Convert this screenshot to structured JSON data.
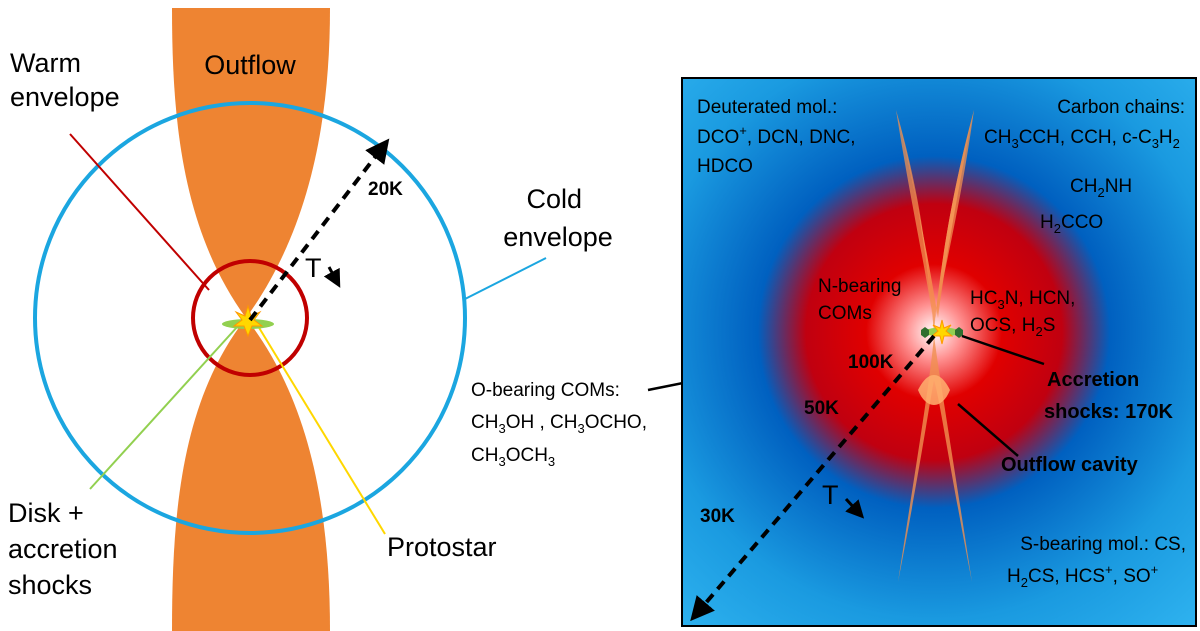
{
  "left_panel": {
    "outflow": "Outflow",
    "warm_envelope": [
      "Warm",
      "envelope"
    ],
    "cold_envelope": [
      "Cold",
      "envelope"
    ],
    "disk_accretion": [
      "Disk +",
      "accretion",
      "shocks"
    ],
    "protostar": "Protostar",
    "temp_20k": "20K",
    "temp_symbol": "T"
  },
  "middle": {
    "o_bearing_title": "O-bearing COMs:",
    "o_bearing_line1_parts": [
      "CH",
      "3",
      "OH , CH",
      "3",
      "OCHO,"
    ],
    "o_bearing_line2_parts": [
      "CH",
      "3",
      "OCH",
      "3"
    ]
  },
  "right_panel": {
    "deuterated_title": "Deuterated mol.:",
    "deuterated_line1_parts": [
      "DCO",
      "+",
      ", DCN, DNC,"
    ],
    "deuterated_line2": "HDCO",
    "carbon_title": "Carbon chains:",
    "carbon_line1_parts": [
      "CH",
      "3",
      "CCH, CCH, c-C",
      "3",
      "H",
      "2"
    ],
    "ch2nh_parts": [
      "CH",
      "2",
      "NH"
    ],
    "h2cco_parts": [
      "H",
      "2",
      "CCO"
    ],
    "n_bearing": [
      "N-bearing",
      "COMs"
    ],
    "hc3n_line1_parts": [
      "HC",
      "3",
      "N, HCN,"
    ],
    "hc3n_line2_parts": [
      "OCS, H",
      "2",
      "S"
    ],
    "temp_100k": "100K",
    "temp_50k": "50K",
    "temp_30k": "30K",
    "accretion_shocks": [
      "Accretion",
      "shocks: 170K"
    ],
    "outflow_cavity": "Outflow cavity",
    "temp_symbol": "T",
    "s_bearing_line1": "S-bearing mol.: CS,",
    "s_bearing_line2_parts": [
      "H",
      "2",
      "CS, HCS",
      "+",
      ",  SO",
      "+"
    ]
  },
  "colors": {
    "outflow_orange": "#ee8432",
    "cold_envelope_blue": "#1ba6e0",
    "warm_envelope_red": "#c00000",
    "disk_green": "#92d050",
    "protostar_yellow": "#ffd700",
    "panel_blue": "#1a9ae0",
    "panel_deep_blue": "#0060c0",
    "hot_core_red": "#e00000"
  }
}
